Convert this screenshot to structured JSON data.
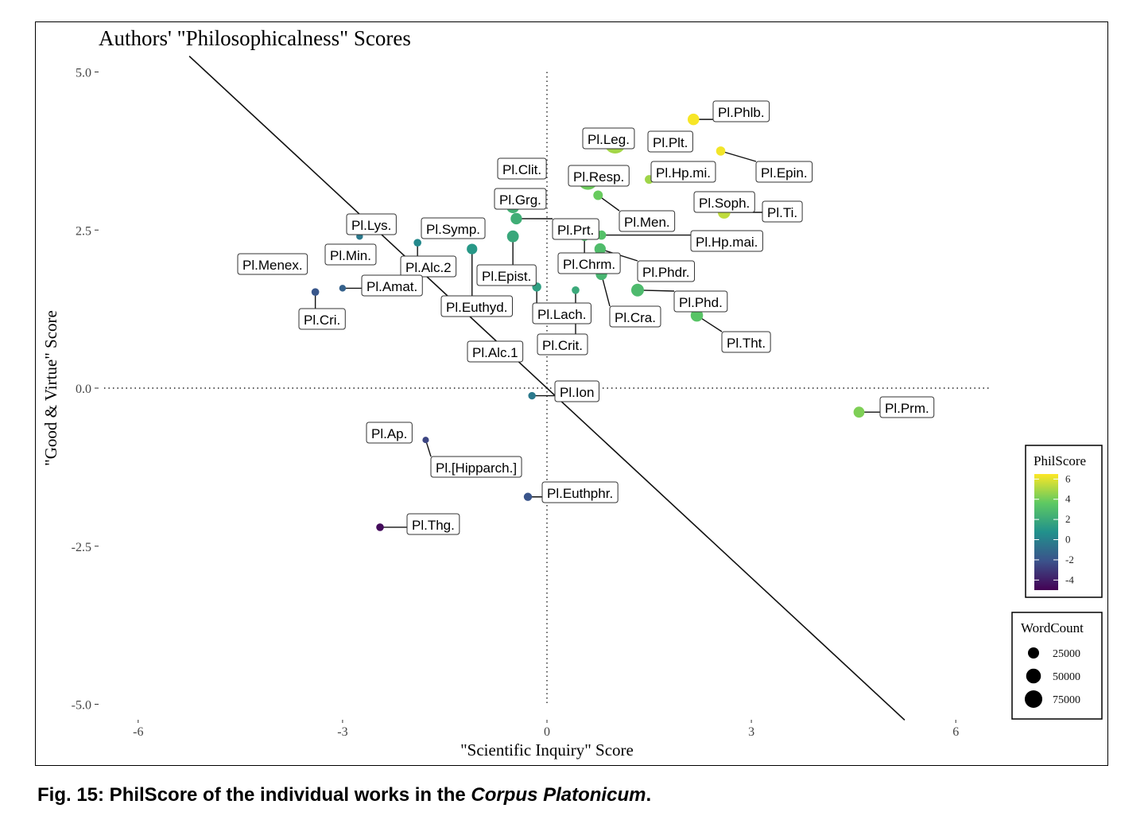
{
  "chart_data": {
    "type": "scatter",
    "title": "Authors' \"Philosophicalness\" Scores",
    "xlabel": "\"Scientific Inquiry\" Score",
    "ylabel": "\"Good & Virtue\" Score",
    "xlim": [
      -6.5,
      6.5
    ],
    "ylim": [
      -5.25,
      5.25
    ],
    "xticks": [
      -6,
      -3,
      0,
      3,
      6
    ],
    "xtick_labels": [
      "-6",
      "-3",
      "0",
      "3",
      "6"
    ],
    "yticks": [
      5.0,
      2.5,
      0.0,
      -2.5,
      -5.0
    ],
    "ytick_labels": [
      "5.0",
      "2.5",
      "0.0",
      "-2.5",
      "-5.0"
    ],
    "grid": false,
    "reference_lines": {
      "vertical_x": 0,
      "horizontal_y": 0,
      "diagonal": "y = -x"
    },
    "color_legend": {
      "title": "PhilScore",
      "min": -5,
      "max": 6.5,
      "ticks": [
        6,
        4,
        2,
        0,
        -2,
        -4
      ],
      "tick_labels": [
        "6",
        "4",
        "2",
        "0",
        "-2",
        "-4"
      ],
      "palette": [
        "#440154",
        "#3b528b",
        "#21918c",
        "#5ec962",
        "#fde725"
      ]
    },
    "size_legend": {
      "title": "WordCount",
      "values": [
        25000,
        50000,
        75000
      ],
      "labels": [
        "25000",
        "50000",
        "75000"
      ]
    },
    "points": [
      {
        "label": "Pl.Phlb.",
        "x": 2.15,
        "y": 4.25,
        "words": 19000
      },
      {
        "label": "Pl.Plt.",
        "x": 1.95,
        "y": 3.95,
        "words": 18000
      },
      {
        "label": "Pl.Leg.",
        "x": 1.0,
        "y": 3.88,
        "words": 100000
      },
      {
        "label": "Pl.Epin.",
        "x": 2.55,
        "y": 3.75,
        "words": 9000
      },
      {
        "label": "Pl.Hp.mi.",
        "x": 1.5,
        "y": 3.3,
        "words": 7500
      },
      {
        "label": "Pl.Clit.",
        "x": -0.25,
        "y": 3.35,
        "words": 2000
      },
      {
        "label": "Pl.Resp.",
        "x": 0.6,
        "y": 3.3,
        "words": 90000
      },
      {
        "label": "Pl.Grg.",
        "x": -0.5,
        "y": 2.87,
        "words": 26000
      },
      {
        "label": "Pl.Men.",
        "x": 0.75,
        "y": 3.05,
        "words": 10000
      },
      {
        "label": "Pl.Soph.",
        "x": 2.6,
        "y": 2.87,
        "words": 18000
      },
      {
        "label": "Pl.Ti.",
        "x": 2.6,
        "y": 2.78,
        "words": 24000
      },
      {
        "label": "Pl.Lys.",
        "x": -2.4,
        "y": 2.52,
        "words": 7000
      },
      {
        "label": "Pl.Symp.",
        "x": -1.25,
        "y": 2.45,
        "words": 18000
      },
      {
        "label": "Pl.Prt.",
        "x": -0.45,
        "y": 2.68,
        "words": 18000
      },
      {
        "label": "Pl.Min.",
        "x": -2.75,
        "y": 2.4,
        "words": 2500
      },
      {
        "label": "Pl.Alc.2",
        "x": -1.9,
        "y": 2.3,
        "words": 4500
      },
      {
        "label": "Pl.Epist.",
        "x": -0.5,
        "y": 2.4,
        "words": 20000
      },
      {
        "label": "Pl.Hp.mai.",
        "x": 0.8,
        "y": 2.42,
        "words": 9000
      },
      {
        "label": "Pl.Chrm.",
        "x": 0.55,
        "y": 2.4,
        "words": 9000
      },
      {
        "label": "Pl.Euthyd.",
        "x": -1.1,
        "y": 2.2,
        "words": 14000
      },
      {
        "label": "Pl.Menex.",
        "x": -4.2,
        "y": 1.9,
        "words": 5500
      },
      {
        "label": "Pl.Phdr.",
        "x": 0.78,
        "y": 2.2,
        "words": 18000
      },
      {
        "label": "Pl.Amat.",
        "x": -3.0,
        "y": 1.58,
        "words": 2500
      },
      {
        "label": "Pl.Cri.",
        "x": -3.4,
        "y": 1.52,
        "words": 4500
      },
      {
        "label": "Pl.Lach.",
        "x": -0.15,
        "y": 1.6,
        "words": 8500
      },
      {
        "label": "Pl.Cra.",
        "x": 0.8,
        "y": 1.8,
        "words": 18000
      },
      {
        "label": "Pl.Crit.",
        "x": 0.42,
        "y": 1.55,
        "words": 4500
      },
      {
        "label": "Pl.Phd.",
        "x": 1.33,
        "y": 1.55,
        "words": 25000
      },
      {
        "label": "Pl.Tht.",
        "x": 2.2,
        "y": 1.15,
        "words": 23000
      },
      {
        "label": "Pl.Alc.1",
        "x": -0.88,
        "y": 0.52,
        "words": 10000
      },
      {
        "label": "Pl.Ion",
        "x": -0.22,
        "y": -0.12,
        "words": 4000
      },
      {
        "label": "Pl.Prm.",
        "x": 4.58,
        "y": -0.38,
        "words": 16000
      },
      {
        "label": "Pl.Ap.",
        "x": -2.45,
        "y": -0.78,
        "words": 12000
      },
      {
        "label": "Pl.[Hipparch.]",
        "x": -1.78,
        "y": -0.82,
        "words": 2000
      },
      {
        "label": "Pl.Euthphr.",
        "x": -0.28,
        "y": -1.72,
        "words": 6000
      },
      {
        "label": "Pl.Thg.",
        "x": -2.45,
        "y": -2.2,
        "words": 4500
      }
    ]
  },
  "caption": {
    "prefix": "Fig. 15: PhilScore of the individual works in the ",
    "emphasis": "Corpus Platonicum",
    "suffix": "."
  }
}
